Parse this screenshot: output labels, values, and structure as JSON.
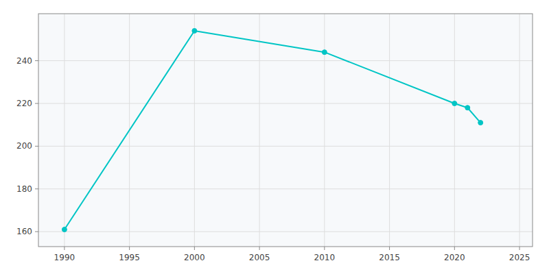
{
  "chart_data": {
    "type": "line",
    "x": [
      1990,
      2000,
      2010,
      2020,
      2021,
      2022
    ],
    "values": [
      161,
      254,
      244,
      220,
      218,
      211
    ],
    "color": "#00C5C5",
    "marker": "circle",
    "xlim": [
      1988,
      2026
    ],
    "ylim": [
      153,
      262
    ],
    "xticks": [
      1990,
      1995,
      2000,
      2005,
      2010,
      2015,
      2020,
      2025
    ],
    "yticks": [
      160,
      180,
      200,
      220,
      240
    ],
    "grid": true
  }
}
